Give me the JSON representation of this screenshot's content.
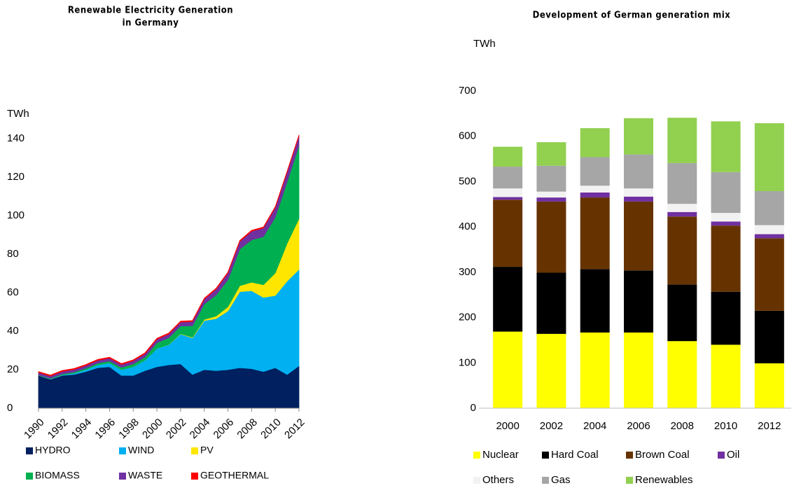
{
  "chart_data": [
    {
      "type": "area",
      "title": [
        "Renewable Electricity Generation",
        "in Germany"
      ],
      "y_label": "TWh",
      "x": [
        1990,
        1991,
        1992,
        1993,
        1994,
        1995,
        1996,
        1997,
        1998,
        1999,
        2000,
        2001,
        2002,
        2003,
        2004,
        2005,
        2006,
        2007,
        2008,
        2009,
        2010,
        2011,
        2012
      ],
      "xlim": [
        1990,
        2012
      ],
      "xticks": [
        1990,
        1992,
        1994,
        1996,
        1998,
        2000,
        2002,
        2004,
        2006,
        2008,
        2010,
        2012
      ],
      "ylim": [
        0,
        145
      ],
      "yticks": [
        0,
        20,
        40,
        60,
        80,
        100,
        120,
        140
      ],
      "stacked": true,
      "grid": false,
      "series": [
        {
          "name": "HYDRO",
          "color": "#002060",
          "values": [
            17,
            15,
            17,
            17.5,
            19,
            21,
            21.5,
            17,
            17,
            19.5,
            21.5,
            22.5,
            23,
            17.5,
            20,
            19.5,
            20,
            21,
            20.5,
            19,
            21,
            17.5,
            22
          ]
        },
        {
          "name": "WIND",
          "color": "#00b0f0",
          "values": [
            0.1,
            0.2,
            0.3,
            0.7,
            1,
            1.5,
            2,
            3,
            4.5,
            5.5,
            9.5,
            10.5,
            15.5,
            19,
            25.5,
            27,
            30.5,
            39.5,
            40.5,
            38.5,
            37.5,
            48.5,
            50
          ]
        },
        {
          "name": "PV",
          "color": "#ffe600",
          "values": [
            0,
            0,
            0,
            0,
            0,
            0,
            0,
            0,
            0,
            0,
            0,
            0.1,
            0.2,
            0.3,
            0.6,
            1.3,
            2.2,
            3.1,
            4.4,
            6.6,
            11.7,
            19.6,
            26.4
          ]
        },
        {
          "name": "BIOMASS",
          "color": "#00b050",
          "values": [
            0.2,
            0.3,
            0.5,
            0.6,
            0.8,
            0.9,
            1,
            1.2,
            1.5,
            1.6,
            3,
            3.5,
            4,
            6,
            8,
            11,
            14,
            19,
            22,
            25,
            29,
            32,
            38
          ]
        },
        {
          "name": "WASTE",
          "color": "#7030a0",
          "values": [
            1.2,
            1.2,
            1.3,
            1.3,
            1.4,
            1.4,
            1.5,
            1.5,
            1.6,
            1.7,
            1.8,
            1.9,
            2,
            2.2,
            2.5,
            3,
            3.5,
            4,
            4.5,
            4.5,
            5,
            5,
            5
          ]
        },
        {
          "name": "GEOTHERMAL",
          "color": "#ff0000",
          "values": [
            0.5,
            0.5,
            0.5,
            0.5,
            0.5,
            0.5,
            0.5,
            0.5,
            0.5,
            0.5,
            0.5,
            0.5,
            0.5,
            0.5,
            0.5,
            0.5,
            0.5,
            0.5,
            0.5,
            0.5,
            0.5,
            0.5,
            0.5
          ]
        }
      ]
    },
    {
      "type": "bar",
      "title": "Development of German generation mix",
      "y_label": "TWh",
      "stacked": true,
      "categories": [
        "2000",
        "2002",
        "2004",
        "2006",
        "2008",
        "2010",
        "2012"
      ],
      "ylim": [
        0,
        700
      ],
      "yticks": [
        0,
        100,
        200,
        300,
        400,
        500,
        600,
        700
      ],
      "grid": false,
      "series": [
        {
          "name": "Nuclear",
          "color": "#ffff00",
          "values": [
            169,
            164,
            167,
            167,
            148,
            140,
            99
          ]
        },
        {
          "name": "Hard Coal",
          "color": "#000000",
          "values": [
            143,
            135,
            140,
            137,
            125,
            117,
            116
          ]
        },
        {
          "name": "Brown Coal",
          "color": "#663300",
          "values": [
            148,
            157,
            158,
            152,
            150,
            146,
            160
          ]
        },
        {
          "name": "Oil",
          "color": "#7030a0",
          "values": [
            6,
            9,
            11,
            11,
            10,
            9,
            9
          ]
        },
        {
          "name": "Others",
          "color": "#f2f2f2",
          "values": [
            19,
            13,
            15,
            18,
            18,
            19,
            20
          ]
        },
        {
          "name": "Gas",
          "color": "#a6a6a6",
          "values": [
            48,
            57,
            63,
            75,
            90,
            90,
            75
          ]
        },
        {
          "name": "Renewables",
          "color": "#92d050",
          "values": [
            44,
            52,
            64,
            80,
            100,
            112,
            150
          ]
        }
      ]
    }
  ]
}
